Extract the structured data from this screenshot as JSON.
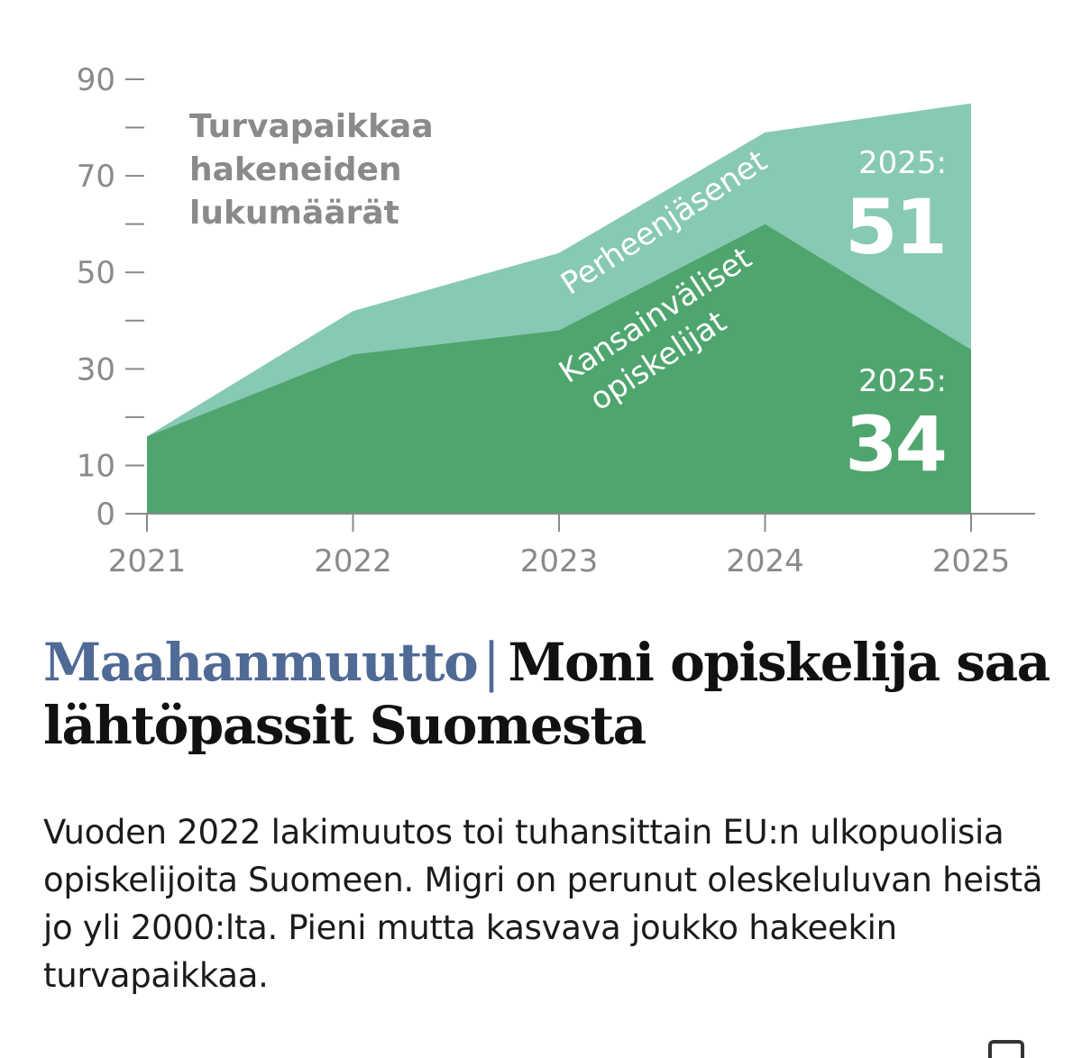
{
  "chart_data": {
    "type": "area",
    "stacked": true,
    "x": [
      2021,
      2022,
      2023,
      2024,
      2025
    ],
    "series": [
      {
        "name": "Kansainväliset opiskelijat",
        "values": [
          16,
          33,
          38,
          60,
          34
        ],
        "color": "#4ea56e"
      },
      {
        "name": "Perheenjäsenet",
        "values": [
          0,
          9,
          16,
          19,
          51
        ],
        "color": "#87c9b4"
      }
    ],
    "yticks": [
      0,
      10,
      30,
      50,
      70,
      90
    ],
    "yminor": [
      20,
      40,
      60,
      80
    ],
    "ylim": [
      0,
      90
    ],
    "xlim": [
      2021,
      2025
    ],
    "annotation_title": "Turvapaikkaa hakeneiden lukumäärät",
    "callouts": [
      {
        "label": "2025:",
        "value": "51"
      },
      {
        "label": "2025:",
        "value": "34"
      }
    ]
  },
  "headline": {
    "section": "Maahanmuutto",
    "separator": "|",
    "title": "Moni opiskelija saa lähtöpassit Suomesta"
  },
  "lead": "Vuoden 2022 lakimuutos toi tuhansittain EU:n ulkopuolisia opiskelijoita Suomeen. Migri on perunut oleskeluluvan heistä jo yli 2000:lta. Pieni mutta kasvava joukko hakeekin turvapaikkaa.",
  "icons": {
    "corner": "share-icon"
  }
}
